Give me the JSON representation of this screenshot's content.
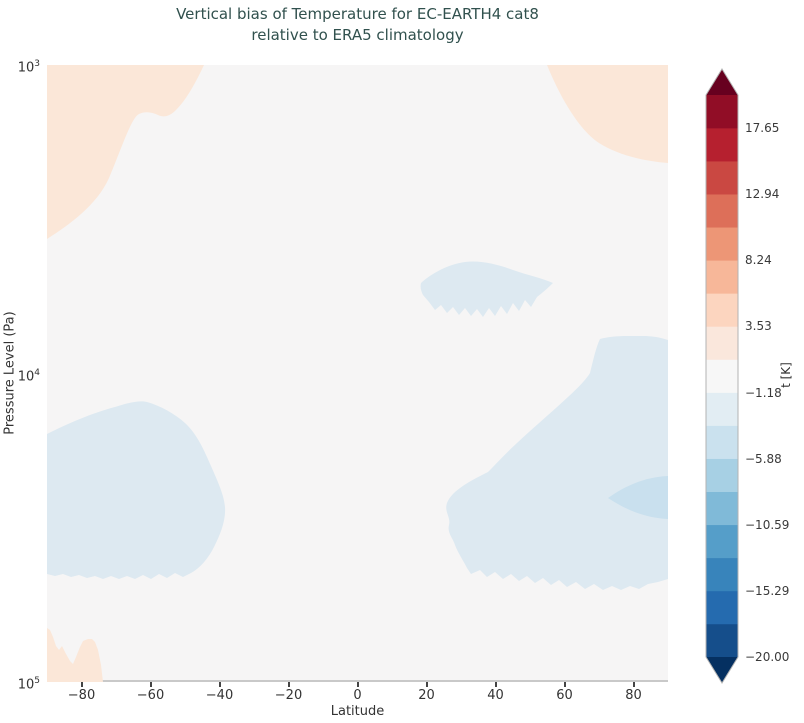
{
  "title": {
    "line1": "Vertical bias of Temperature for EC-EARTH4 cat8",
    "line2": "relative to ERA5 climatology"
  },
  "axes": {
    "xlabel": "Latitude",
    "ylabel": "Pressure Level (Pa)",
    "x_ticks": [
      {
        "label": "−80",
        "value": -80
      },
      {
        "label": "−60",
        "value": -60
      },
      {
        "label": "−40",
        "value": -40
      },
      {
        "label": "−20",
        "value": -20
      },
      {
        "label": "0",
        "value": 0
      },
      {
        "label": "20",
        "value": 20
      },
      {
        "label": "40",
        "value": 40
      },
      {
        "label": "60",
        "value": 60
      },
      {
        "label": "80",
        "value": 80
      }
    ],
    "y_ticks": [
      {
        "base": "10",
        "exp": "3",
        "value": 1000
      },
      {
        "base": "10",
        "exp": "4",
        "value": 10000
      },
      {
        "base": "10",
        "exp": "5",
        "value": 100000
      }
    ]
  },
  "colorbar": {
    "label": "t [K]",
    "vmin": -20,
    "vmax": 20,
    "ticks": [
      {
        "label": "17.65",
        "value": 17.65
      },
      {
        "label": "12.94",
        "value": 12.94
      },
      {
        "label": "8.24",
        "value": 8.24
      },
      {
        "label": "3.53",
        "value": 3.53
      },
      {
        "label": "−1.18",
        "value": -1.18
      },
      {
        "label": "−5.88",
        "value": -5.88
      },
      {
        "label": "−10.59",
        "value": -10.59
      },
      {
        "label": "−15.29",
        "value": -15.29
      },
      {
        "label": "−20.00",
        "value": -20.0
      }
    ],
    "segments_bottom_to_top": [
      "#154e8b",
      "#256baf",
      "#3884bb",
      "#559ec9",
      "#80bad8",
      "#a7d0e4",
      "#cae1ee",
      "#e2edf3",
      "#f7f7f7",
      "#fae7dc",
      "#fcd5bf",
      "#f7b799",
      "#ed9676",
      "#dd6f59",
      "#ca4842",
      "#b6202f",
      "#910d26"
    ],
    "under_color": "#053061",
    "over_color": "#67001f"
  },
  "colors": {
    "title_color": "#31514e",
    "plot_bg": "#f6f5f5",
    "warm_band": "#fbe7d8",
    "cool_band": "#dde9f1",
    "cool_core": "#c9e0ee",
    "axis_line": "#c9c9c9",
    "tick_text": "#333333",
    "tick_mark": "#444444"
  },
  "chart_data": {
    "type": "heatmap",
    "subtype": "filled_contour",
    "title": "Vertical bias of Temperature for EC-EARTH4 cat8 relative to ERA5 climatology",
    "xlabel": "Latitude",
    "ylabel": "Pressure Level (Pa)",
    "colorbar_label": "t [K]",
    "x_range_deg": [
      -90,
      90
    ],
    "x_ticks": [
      -80,
      -60,
      -40,
      -20,
      0,
      20,
      40,
      60,
      80
    ],
    "y_scale": "log",
    "y_axis_inverted": true,
    "y_range_pa": [
      1000,
      100000
    ],
    "y_ticks_pa": [
      1000,
      10000,
      100000
    ],
    "colormap": "RdBu_r",
    "contour_levels_k": [
      -20.0,
      -17.65,
      -15.29,
      -12.94,
      -10.59,
      -8.24,
      -5.88,
      -3.53,
      -1.18,
      1.18,
      3.53,
      5.88,
      8.24,
      10.59,
      12.94,
      15.29,
      17.65,
      20.0
    ],
    "colorbar_tick_labels_k": [
      17.65,
      12.94,
      8.24,
      3.53,
      -1.18,
      -5.88,
      -10.59,
      -15.29,
      -20.0
    ],
    "background_band_k": [
      -1.18,
      1.18
    ],
    "legend_position": "right-colorbar",
    "grid": false,
    "regions": [
      {
        "name": "warm-bias-upper-left",
        "value_band_k": [
          1.18,
          3.53
        ],
        "lat_range_deg": [
          -90,
          -44
        ],
        "pressure_range_pa": [
          1000,
          3650
        ]
      },
      {
        "name": "warm-bias-upper-right",
        "value_band_k": [
          1.18,
          3.53
        ],
        "lat_range_deg": [
          54,
          90
        ],
        "pressure_range_pa": [
          1000,
          2100
        ]
      },
      {
        "name": "warm-bias-bottom-left",
        "value_band_k": [
          1.18,
          3.53
        ],
        "lat_range_deg": [
          -90,
          -73
        ],
        "pressure_range_pa": [
          68000,
          100000
        ]
      },
      {
        "name": "cool-bias-tropics-mid",
        "value_band_k": [
          -3.53,
          -1.18
        ],
        "lat_range_deg": [
          18,
          56
        ],
        "pressure_range_pa": [
          4200,
          6600
        ]
      },
      {
        "name": "cool-bias-south-mid",
        "value_band_k": [
          -3.53,
          -1.18
        ],
        "lat_range_deg": [
          -89,
          -37
        ],
        "pressure_range_pa": [
          12300,
          46500
        ]
      },
      {
        "name": "cool-bias-north-low",
        "value_band_k": [
          -3.53,
          -1.18
        ],
        "lat_range_deg": [
          25,
          90
        ],
        "pressure_range_pa": [
          7600,
          48500
        ]
      },
      {
        "name": "cool-bias-north-core",
        "value_band_k": [
          -5.88,
          -3.53
        ],
        "lat_range_deg": [
          72,
          90
        ],
        "pressure_range_pa": [
          21500,
          29500
        ]
      }
    ]
  }
}
